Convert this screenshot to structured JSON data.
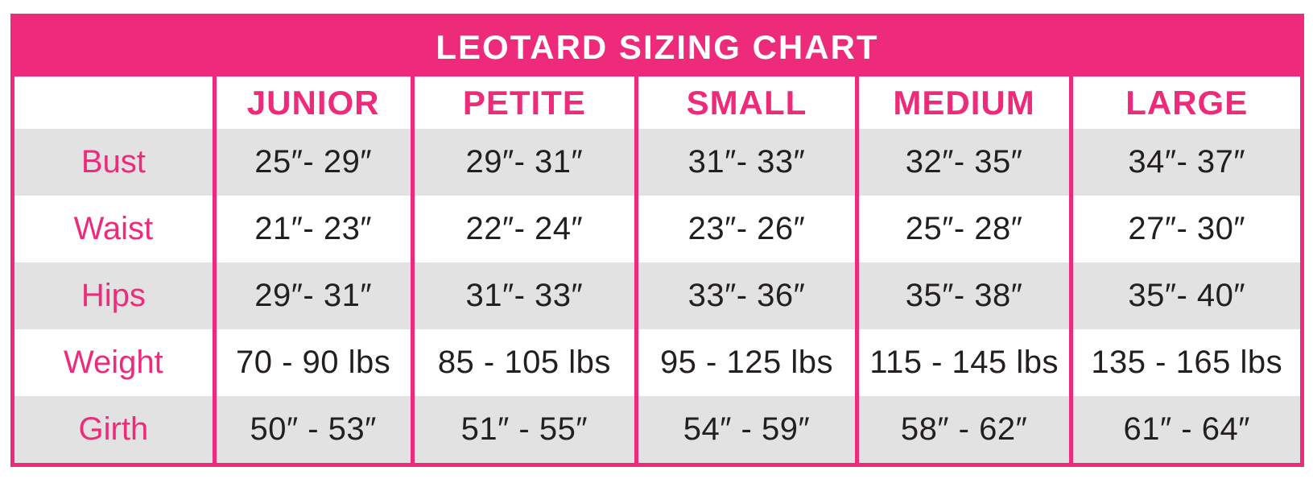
{
  "chart_data": {
    "type": "table",
    "title": "LEOTARD SIZING CHART",
    "row_header_column": "",
    "columns": [
      "JUNIOR",
      "PETITE",
      "SMALL",
      "MEDIUM",
      "LARGE"
    ],
    "rows": [
      {
        "label": "Bust",
        "values": [
          "25″- 29″",
          "29″- 31″",
          "31″- 33″",
          "32″- 35″",
          "34″- 37″"
        ]
      },
      {
        "label": "Waist",
        "values": [
          "21″- 23″",
          "22″- 24″",
          "23″- 26″",
          "25″- 28″",
          "27″- 30″"
        ]
      },
      {
        "label": "Hips",
        "values": [
          "29″- 31″",
          "31″- 33″",
          "33″- 36″",
          "35″- 38″",
          "35″- 40″"
        ]
      },
      {
        "label": "Weight",
        "values": [
          "70 - 90 lbs",
          "85 - 105 lbs",
          "95 - 125 lbs",
          "115 - 145 lbs",
          "135 - 165 lbs"
        ]
      },
      {
        "label": "Girth",
        "values": [
          "50″ - 53″",
          "51″ - 55″",
          "54″ - 59″",
          "58″ - 62″",
          "61″ - 64″"
        ]
      }
    ],
    "layout": {
      "striped_rows": [
        "Bust",
        "Hips",
        "Girth"
      ],
      "grid": "vertical pink dividers, no horizontal lines",
      "legend": "none"
    }
  },
  "colors": {
    "brand_pink": "#EE2A7B",
    "stripe_gray": "#E2E2E3",
    "text_dark": "#231F20",
    "title_text": "#FFFFFF",
    "background": "#FFFFFF"
  }
}
